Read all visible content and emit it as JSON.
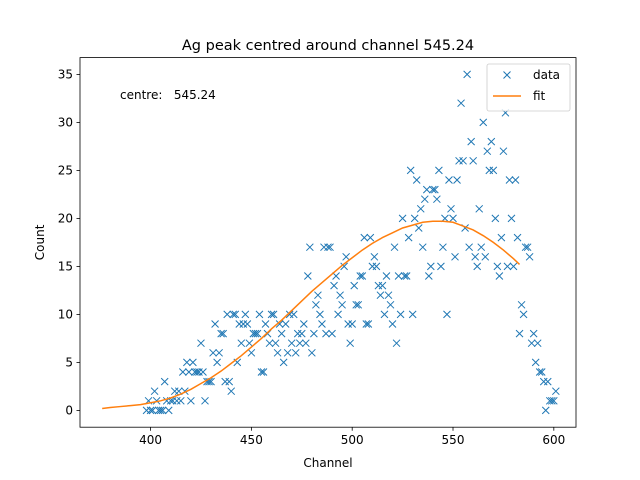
{
  "chart_data": {
    "type": "scatter",
    "title": "Ag peak centred around channel 545.24",
    "xlabel": "Channel",
    "ylabel": "Count",
    "xlim": [
      365,
      611
    ],
    "ylim": [
      -1.75,
      36.75
    ],
    "xticks": [
      400,
      450,
      500,
      550,
      600
    ],
    "yticks": [
      0,
      5,
      10,
      15,
      20,
      25,
      30,
      35
    ],
    "grid": false,
    "legend_position": "top-right",
    "annotation": "centre:   545.24",
    "colors": {
      "data": "#1f77b4",
      "fit": "#ff7f0e"
    },
    "series": [
      {
        "name": "data",
        "kind": "scatter",
        "marker": "x",
        "points": [
          [
            398,
            0
          ],
          [
            399,
            1
          ],
          [
            400,
            0
          ],
          [
            401,
            0
          ],
          [
            402,
            2
          ],
          [
            403,
            1
          ],
          [
            404,
            0
          ],
          [
            405,
            0
          ],
          [
            406,
            0
          ],
          [
            407,
            3
          ],
          [
            408,
            1
          ],
          [
            409,
            0
          ],
          [
            410,
            1
          ],
          [
            411,
            1
          ],
          [
            412,
            2
          ],
          [
            413,
            1
          ],
          [
            414,
            2
          ],
          [
            415,
            1
          ],
          [
            416,
            4
          ],
          [
            417,
            2
          ],
          [
            418,
            5
          ],
          [
            419,
            4
          ],
          [
            420,
            1
          ],
          [
            421,
            5
          ],
          [
            422,
            4
          ],
          [
            423,
            4
          ],
          [
            424,
            4
          ],
          [
            425,
            7
          ],
          [
            426,
            4
          ],
          [
            427,
            1
          ],
          [
            428,
            3
          ],
          [
            429,
            3
          ],
          [
            430,
            3
          ],
          [
            431,
            6
          ],
          [
            432,
            9
          ],
          [
            433,
            5
          ],
          [
            434,
            6
          ],
          [
            435,
            8
          ],
          [
            436,
            8
          ],
          [
            437,
            3
          ],
          [
            438,
            10
          ],
          [
            439,
            3
          ],
          [
            440,
            2
          ],
          [
            441,
            10
          ],
          [
            442,
            10
          ],
          [
            443,
            5
          ],
          [
            444,
            9
          ],
          [
            445,
            7
          ],
          [
            446,
            9
          ],
          [
            447,
            10
          ],
          [
            448,
            9
          ],
          [
            449,
            7
          ],
          [
            450,
            6
          ],
          [
            451,
            8
          ],
          [
            452,
            8
          ],
          [
            453,
            8
          ],
          [
            454,
            10
          ],
          [
            455,
            4
          ],
          [
            456,
            4
          ],
          [
            457,
            9
          ],
          [
            458,
            8
          ],
          [
            459,
            7
          ],
          [
            460,
            10
          ],
          [
            461,
            10
          ],
          [
            462,
            7
          ],
          [
            463,
            6
          ],
          [
            464,
            9
          ],
          [
            465,
            8
          ],
          [
            466,
            5
          ],
          [
            467,
            9
          ],
          [
            468,
            6
          ],
          [
            469,
            10
          ],
          [
            470,
            7
          ],
          [
            471,
            10
          ],
          [
            472,
            6
          ],
          [
            473,
            8
          ],
          [
            474,
            7
          ],
          [
            475,
            8
          ],
          [
            476,
            9
          ],
          [
            477,
            7
          ],
          [
            478,
            14
          ],
          [
            479,
            17
          ],
          [
            480,
            6
          ],
          [
            481,
            8
          ],
          [
            482,
            11
          ],
          [
            483,
            12
          ],
          [
            484,
            10
          ],
          [
            485,
            9
          ],
          [
            486,
            17
          ],
          [
            487,
            8
          ],
          [
            488,
            17
          ],
          [
            489,
            17
          ],
          [
            490,
            8
          ],
          [
            491,
            13
          ],
          [
            492,
            14
          ],
          [
            493,
            10
          ],
          [
            494,
            12
          ],
          [
            495,
            11
          ],
          [
            496,
            15
          ],
          [
            497,
            16
          ],
          [
            498,
            9
          ],
          [
            499,
            7
          ],
          [
            500,
            9
          ],
          [
            501,
            13
          ],
          [
            502,
            11
          ],
          [
            503,
            11
          ],
          [
            504,
            14
          ],
          [
            505,
            14
          ],
          [
            506,
            18
          ],
          [
            507,
            9
          ],
          [
            508,
            9
          ],
          [
            509,
            18
          ],
          [
            510,
            15
          ],
          [
            511,
            16
          ],
          [
            512,
            15
          ],
          [
            513,
            13
          ],
          [
            514,
            12
          ],
          [
            515,
            13
          ],
          [
            516,
            10
          ],
          [
            517,
            14
          ],
          [
            518,
            12
          ],
          [
            519,
            11
          ],
          [
            520,
            9
          ],
          [
            521,
            17
          ],
          [
            522,
            7
          ],
          [
            523,
            14
          ],
          [
            524,
            10
          ],
          [
            525,
            20
          ],
          [
            526,
            14
          ],
          [
            527,
            14
          ],
          [
            528,
            18
          ],
          [
            529,
            25
          ],
          [
            530,
            10
          ],
          [
            531,
            20
          ],
          [
            532,
            24
          ],
          [
            533,
            19
          ],
          [
            534,
            21
          ],
          [
            535,
            17
          ],
          [
            536,
            22
          ],
          [
            537,
            23
          ],
          [
            538,
            14
          ],
          [
            539,
            15
          ],
          [
            540,
            23
          ],
          [
            541,
            23
          ],
          [
            542,
            22
          ],
          [
            543,
            25
          ],
          [
            544,
            15
          ],
          [
            545,
            17
          ],
          [
            546,
            20
          ],
          [
            547,
            10
          ],
          [
            548,
            24
          ],
          [
            549,
            21
          ],
          [
            550,
            20
          ],
          [
            551,
            16
          ],
          [
            552,
            24
          ],
          [
            553,
            26
          ],
          [
            554,
            32
          ],
          [
            555,
            26
          ],
          [
            556,
            19
          ],
          [
            557,
            35
          ],
          [
            558,
            17
          ],
          [
            559,
            28
          ],
          [
            560,
            26
          ],
          [
            561,
            16
          ],
          [
            562,
            15
          ],
          [
            563,
            21
          ],
          [
            564,
            17
          ],
          [
            565,
            30
          ],
          [
            566,
            16
          ],
          [
            567,
            27
          ],
          [
            568,
            25
          ],
          [
            569,
            28
          ],
          [
            570,
            25
          ],
          [
            571,
            20
          ],
          [
            572,
            15
          ],
          [
            573,
            14
          ],
          [
            574,
            18
          ],
          [
            575,
            27
          ],
          [
            576,
            31
          ],
          [
            577,
            15
          ],
          [
            578,
            24
          ],
          [
            579,
            20
          ],
          [
            580,
            15
          ],
          [
            581,
            24
          ],
          [
            582,
            18
          ],
          [
            583,
            8
          ],
          [
            584,
            11
          ],
          [
            585,
            10
          ],
          [
            586,
            17
          ],
          [
            587,
            17
          ],
          [
            588,
            16
          ],
          [
            589,
            7
          ],
          [
            590,
            8
          ],
          [
            591,
            5
          ],
          [
            592,
            7
          ],
          [
            593,
            4
          ],
          [
            594,
            4
          ],
          [
            595,
            3
          ],
          [
            596,
            0
          ],
          [
            597,
            3
          ],
          [
            598,
            1
          ],
          [
            599,
            1
          ],
          [
            600,
            1
          ],
          [
            601,
            2
          ]
        ]
      },
      {
        "name": "fit",
        "kind": "line",
        "points": [
          [
            376,
            0.2
          ],
          [
            380,
            0.3
          ],
          [
            385,
            0.4
          ],
          [
            390,
            0.5
          ],
          [
            395,
            0.6
          ],
          [
            400,
            0.8
          ],
          [
            405,
            1.0
          ],
          [
            410,
            1.3
          ],
          [
            415,
            1.7
          ],
          [
            420,
            2.2
          ],
          [
            425,
            2.8
          ],
          [
            430,
            3.4
          ],
          [
            435,
            4.1
          ],
          [
            440,
            4.9
          ],
          [
            445,
            5.7
          ],
          [
            450,
            6.6
          ],
          [
            455,
            7.5
          ],
          [
            460,
            8.5
          ],
          [
            465,
            9.4
          ],
          [
            470,
            10.4
          ],
          [
            475,
            11.4
          ],
          [
            480,
            12.4
          ],
          [
            485,
            13.3
          ],
          [
            490,
            14.2
          ],
          [
            495,
            15.1
          ],
          [
            500,
            15.9
          ],
          [
            505,
            16.7
          ],
          [
            510,
            17.4
          ],
          [
            515,
            18.0
          ],
          [
            520,
            18.5
          ],
          [
            525,
            19.0
          ],
          [
            530,
            19.3
          ],
          [
            535,
            19.6
          ],
          [
            540,
            19.7
          ],
          [
            545,
            19.7
          ],
          [
            550,
            19.6
          ],
          [
            555,
            19.2
          ],
          [
            560,
            18.8
          ],
          [
            565,
            18.2
          ],
          [
            570,
            17.5
          ],
          [
            575,
            16.7
          ],
          [
            580,
            15.8
          ],
          [
            583,
            15.2
          ]
        ]
      }
    ]
  }
}
